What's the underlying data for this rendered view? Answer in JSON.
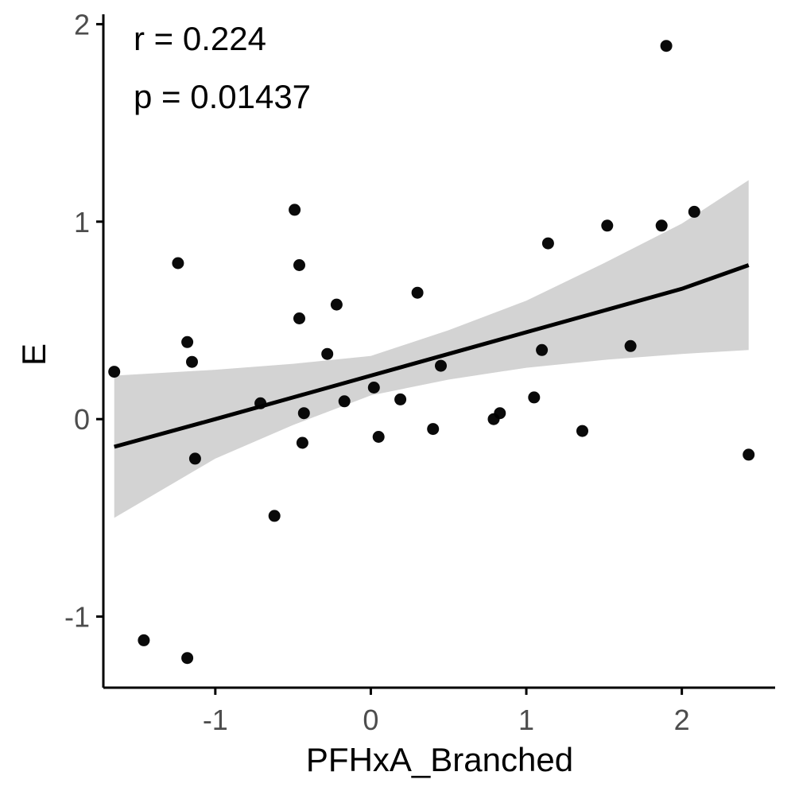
{
  "chart_data": {
    "type": "scatter",
    "xlabel": "PFHxA_Branched",
    "ylabel": "E",
    "xlim": [
      -1.72,
      2.6
    ],
    "ylim": [
      -1.36,
      2.05
    ],
    "x_ticks": [
      -1,
      0,
      1,
      2
    ],
    "y_ticks": [
      -1,
      0,
      1,
      2
    ],
    "x_tick_labels": [
      "-1",
      "0",
      "1",
      "2"
    ],
    "y_tick_labels": [
      "-1",
      "0",
      "1",
      "2"
    ],
    "grid": false,
    "annotations": [
      "r = 0.224",
      "p = 0.01437"
    ],
    "points": [
      {
        "x": -1.65,
        "y": 0.24
      },
      {
        "x": -1.46,
        "y": -1.12
      },
      {
        "x": -1.24,
        "y": 0.79
      },
      {
        "x": -1.18,
        "y": 0.39
      },
      {
        "x": -1.18,
        "y": -1.21
      },
      {
        "x": -1.15,
        "y": 0.29
      },
      {
        "x": -1.13,
        "y": -0.2
      },
      {
        "x": -0.71,
        "y": 0.08
      },
      {
        "x": -0.62,
        "y": -0.49
      },
      {
        "x": -0.49,
        "y": 1.06
      },
      {
        "x": -0.46,
        "y": 0.78
      },
      {
        "x": -0.46,
        "y": 0.51
      },
      {
        "x": -0.44,
        "y": -0.12
      },
      {
        "x": -0.43,
        "y": 0.03
      },
      {
        "x": -0.28,
        "y": 0.33
      },
      {
        "x": -0.22,
        "y": 0.58
      },
      {
        "x": -0.17,
        "y": 0.09
      },
      {
        "x": 0.02,
        "y": 0.16
      },
      {
        "x": 0.05,
        "y": -0.09
      },
      {
        "x": 0.19,
        "y": 0.1
      },
      {
        "x": 0.3,
        "y": 0.64
      },
      {
        "x": 0.4,
        "y": -0.05
      },
      {
        "x": 0.45,
        "y": 0.27
      },
      {
        "x": 0.79,
        "y": 0.0
      },
      {
        "x": 0.83,
        "y": 0.03
      },
      {
        "x": 1.05,
        "y": 0.11
      },
      {
        "x": 1.1,
        "y": 0.35
      },
      {
        "x": 1.14,
        "y": 0.89
      },
      {
        "x": 1.36,
        "y": -0.06
      },
      {
        "x": 1.52,
        "y": 0.98
      },
      {
        "x": 1.67,
        "y": 0.37
      },
      {
        "x": 1.87,
        "y": 0.98
      },
      {
        "x": 1.9,
        "y": 1.89
      },
      {
        "x": 2.08,
        "y": 1.05
      },
      {
        "x": 2.43,
        "y": -0.18
      }
    ],
    "fit": {
      "x": [
        -1.65,
        -1.0,
        -0.5,
        0.0,
        0.5,
        1.0,
        1.5,
        2.0,
        2.43
      ],
      "y": [
        -0.14,
        0.0,
        0.11,
        0.22,
        0.33,
        0.44,
        0.55,
        0.66,
        0.78
      ],
      "ci_lower": [
        -0.5,
        -0.2,
        -0.03,
        0.12,
        0.2,
        0.26,
        0.3,
        0.33,
        0.35
      ],
      "ci_upper": [
        0.22,
        0.25,
        0.28,
        0.32,
        0.45,
        0.6,
        0.79,
        0.99,
        1.21
      ]
    },
    "colors": {
      "points": "#000000",
      "fit_line": "#000000",
      "ci_band": "#d3d3d3",
      "axis": "#000000",
      "tick_label": "#4d4d4d"
    }
  }
}
